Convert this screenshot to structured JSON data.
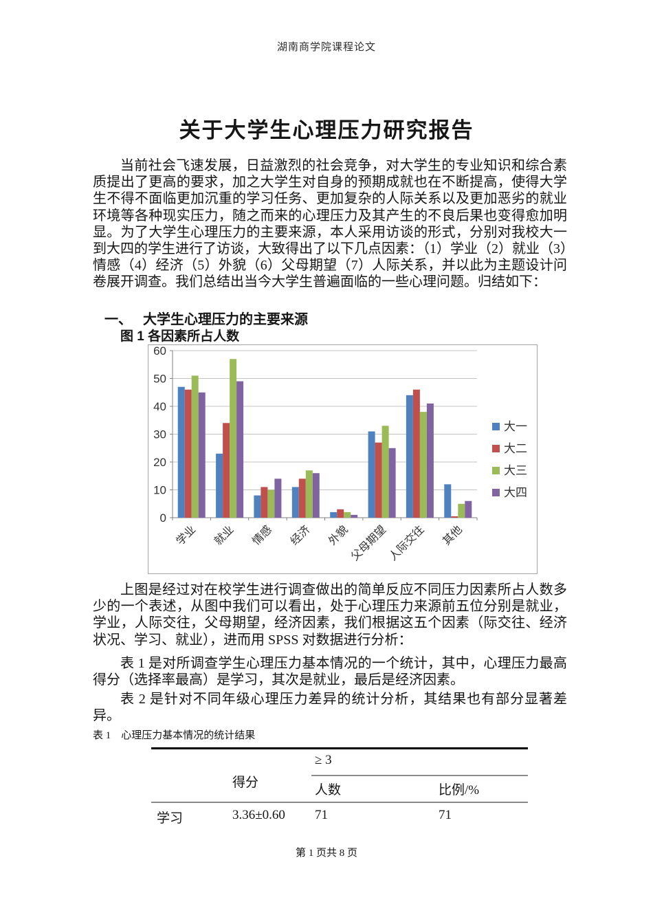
{
  "page": {
    "header": "湖南商学院课程论文",
    "title": "关于大学生心理压力研究报告",
    "footer": "第 1 页共 8 页"
  },
  "paragraphs": {
    "p1": "当前社会飞速发展，日益激烈的社会竞争，对大学生的专业知识和综合素质提出了更高的要求，加之大学生对自身的预期成就也在不断提高，使得大学生不得不面临更加沉重的学习任务、更加复杂的人际关系以及更加恶劣的就业环境等各种现实压力，随之而来的心理压力及其产生的不良后果也变得愈加明显。为了大学生心理压力的主要来源，本人采用访谈的形式，分别对我校大一到大四的学生进行了访谈，大致得出了以下几点因素：（1）学业（2）就业（3）情感（4）经济（5）外貌（6）父母期望（7）人际关系，并以此为主题设计问卷展开调查。我们总结出当今大学生普遍面临的一些心理问题。归结如下：",
    "p2": "上图是经过对在校学生进行调查做出的简单反应不同压力因素所占人数多少的一个表述，从图中我们可以看出，处于心理压力来源前五位分别是就业，学业，人际交往，父母期望，经济因素，我们根据这五个因素（际交往、经济状况、学习、就业），进而用 SPSS 对数据进行分析：",
    "p3": "表 1 是对所调查学生心理压力基本情况的一个统计，其中，心理压力最高得分（选择率最高）是学习，其次是就业，最后是经济因素。",
    "p4": "表 2 是针对不同年级心理压力差异的统计分析，其结果也有部分显著差异。"
  },
  "section1": {
    "number": "一、",
    "heading": "大学生心理压力的主要来源",
    "figure_caption": "图 1  各因素所占人数"
  },
  "chart_data": {
    "type": "bar",
    "title": "图1 各因素所占人数",
    "categories": [
      "学业",
      "就业",
      "情感",
      "经济",
      "外貌",
      "父母期望",
      "人际交往",
      "其他"
    ],
    "series": [
      {
        "name": "大一",
        "color": "#4E81BD",
        "values": [
          47,
          23,
          8,
          11,
          2,
          31,
          44,
          12
        ]
      },
      {
        "name": "大二",
        "color": "#C0504D",
        "values": [
          46,
          34,
          11,
          14,
          3,
          27,
          46,
          0.5
        ]
      },
      {
        "name": "大三",
        "color": "#9BBB59",
        "values": [
          51,
          57,
          10,
          17,
          2,
          33,
          38,
          5
        ]
      },
      {
        "name": "大四",
        "color": "#8064A2",
        "values": [
          45,
          49,
          14,
          16,
          1,
          25,
          41,
          6
        ]
      }
    ],
    "xlabel": "",
    "ylabel": "",
    "ylim": [
      0,
      60
    ],
    "ytick_interval": 10,
    "grid": true,
    "legend_position": "right",
    "axis_color": "#808080",
    "grid_color": "#c3c3c3",
    "label_color": "#333333"
  },
  "table1": {
    "caption": "表 1　心理压力基本情况的统计结果",
    "group_header": "≥ 3",
    "col_score": "得分",
    "col_count": "人数",
    "col_ratio": "比例/%",
    "rows": [
      {
        "factor": "学习",
        "score": "3.36±0.60",
        "count": "71",
        "ratio": "71"
      }
    ]
  }
}
